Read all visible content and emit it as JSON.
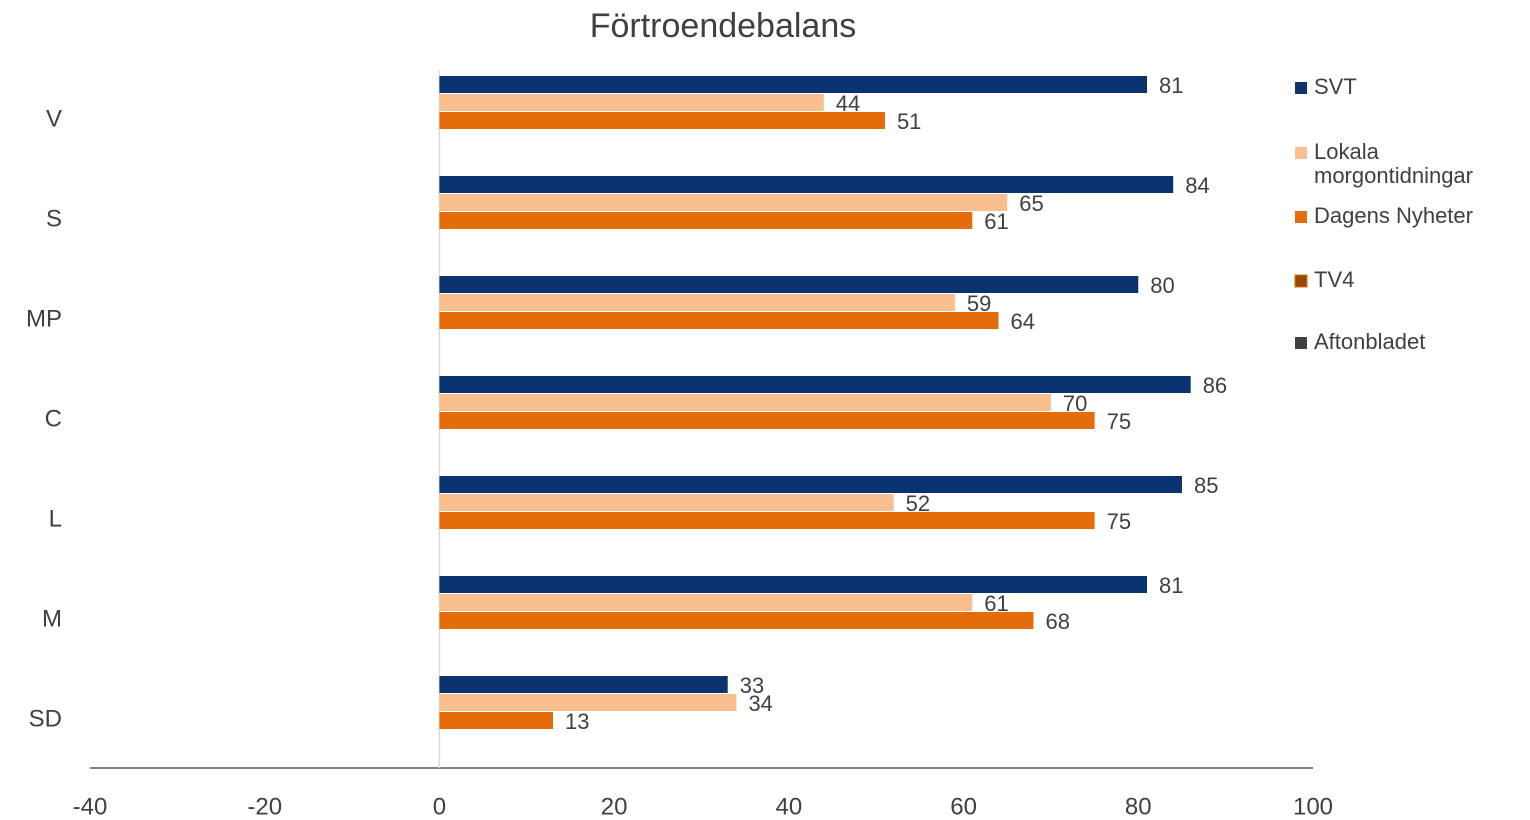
{
  "chart_data": {
    "type": "hbar",
    "title": "Förtroendebalans",
    "categories": [
      "V",
      "S",
      "MP",
      "C",
      "L",
      "M",
      "SD"
    ],
    "series": [
      {
        "name": "SVT",
        "color": "#0b3370",
        "values": [
          81,
          84,
          80,
          86,
          85,
          81,
          33
        ]
      },
      {
        "name": "Lokala morgontidningar",
        "color": "#f9bf8f",
        "values": [
          44,
          65,
          59,
          70,
          52,
          61,
          34
        ]
      },
      {
        "name": "Dagens Nyheter",
        "color": "#e46c0a",
        "values": [
          51,
          61,
          64,
          75,
          75,
          68,
          13
        ]
      },
      {
        "name": "TV4",
        "color": "#974806",
        "values": [
          null,
          null,
          null,
          null,
          null,
          null,
          null
        ]
      },
      {
        "name": "Aftonbladet",
        "color": "#404040",
        "values": [
          null,
          null,
          null,
          null,
          null,
          null,
          null
        ]
      }
    ],
    "xlim": [
      -40,
      100
    ],
    "xticks": [
      -40,
      -20,
      0,
      20,
      40,
      60,
      80,
      100
    ],
    "legend": "right"
  }
}
